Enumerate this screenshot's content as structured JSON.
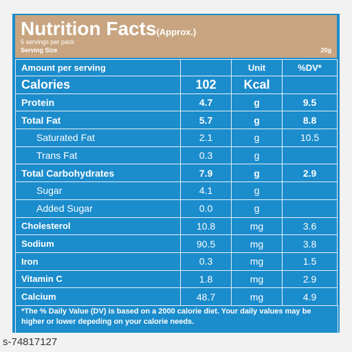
{
  "header": {
    "title": "Nutrition Facts",
    "title_note": "(Approx.)",
    "servings": "5 servings per pack",
    "serving_size_label": "Serving Size",
    "serving_size": "20g"
  },
  "table": {
    "columns": [
      "Amount per serving",
      "",
      "Unit",
      "%DV*"
    ],
    "rows": [
      [
        "Calories",
        "102",
        "Kcal",
        null
      ],
      [
        "Protein",
        "4.7",
        "g",
        "9.5"
      ],
      [
        "Total Fat",
        "5.7",
        "g",
        "8.8"
      ],
      [
        "Saturated Fat",
        "2.1",
        "g",
        "10.5"
      ],
      [
        "Trans Fat",
        "0.3",
        "g",
        null
      ],
      [
        "Total Carbohydrates",
        "7.9",
        "g",
        "2.9"
      ],
      [
        "Sugar",
        "4.1",
        "g",
        null
      ],
      [
        "Added Sugar",
        "0.0",
        "g",
        null
      ],
      [
        "Cholesterol",
        "10.8",
        "mg",
        "3.6"
      ],
      [
        "Sodium",
        "90.5",
        "mg",
        "3.8"
      ],
      [
        "Iron",
        "0.3",
        "mg",
        "1.5"
      ],
      [
        "Vitamin C",
        "1.8",
        "mg",
        "2.9"
      ],
      [
        "Calcium",
        "48.7",
        "mg",
        "4.9"
      ]
    ]
  },
  "footnote": "*The % Daily Value (DV) is based on a 2000 calorie diet. Your daily values may be higher or lower depeding on your calorie needs.",
  "watermark": "s-74817127"
}
